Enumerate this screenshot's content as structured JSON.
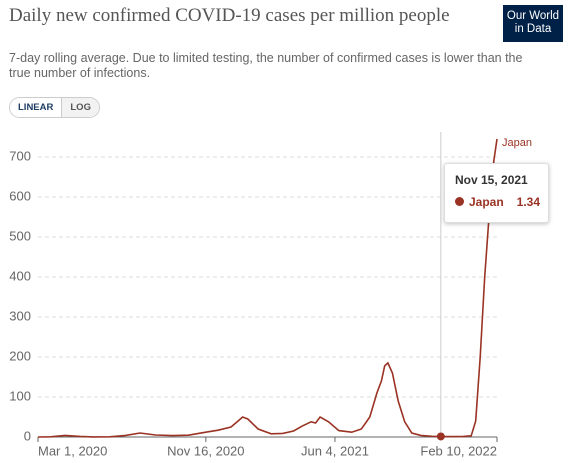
{
  "chart_data": {
    "type": "line",
    "title": "Daily new confirmed COVID-19 cases per million people",
    "subtitle": "7-day rolling average. Due to limited testing, the number of confirmed cases is lower than the true number of infections.",
    "logo": [
      "Our World",
      "in Data"
    ],
    "scale_buttons": [
      "LINEAR",
      "LOG"
    ],
    "log_scale": false,
    "grid": true,
    "x": [
      "2020-03-01",
      "2020-03-20",
      "2020-04-12",
      "2020-05-05",
      "2020-05-25",
      "2020-06-20",
      "2020-07-15",
      "2020-08-06",
      "2020-08-30",
      "2020-09-25",
      "2020-10-20",
      "2020-11-16",
      "2020-12-05",
      "2020-12-25",
      "2021-01-05",
      "2021-01-12",
      "2021-01-20",
      "2021-02-05",
      "2021-02-25",
      "2021-03-15",
      "2021-04-01",
      "2021-04-15",
      "2021-04-28",
      "2021-05-05",
      "2021-05-12",
      "2021-05-25",
      "2021-06-10",
      "2021-06-30",
      "2021-07-15",
      "2021-07-28",
      "2021-08-08",
      "2021-08-15",
      "2021-08-20",
      "2021-08-25",
      "2021-09-01",
      "2021-09-10",
      "2021-09-20",
      "2021-10-01",
      "2021-10-15",
      "2021-11-01",
      "2021-11-15",
      "2021-12-01",
      "2021-12-20",
      "2022-01-01",
      "2022-01-08",
      "2022-01-15",
      "2022-01-22",
      "2022-01-29",
      "2022-02-05",
      "2022-02-10"
    ],
    "series": [
      {
        "name": "Japan",
        "color": "#9a3324",
        "values": [
          0.1,
          0.5,
          4,
          1.5,
          0.3,
          0.5,
          4,
          10,
          5,
          3.5,
          4.5,
          12,
          17,
          25,
          40,
          50,
          45,
          20,
          8,
          9,
          15,
          28,
          38,
          35,
          50,
          38,
          16,
          12,
          20,
          50,
          110,
          140,
          178,
          185,
          160,
          90,
          38,
          10,
          4,
          1.8,
          1.34,
          1,
          1.5,
          3,
          40,
          200,
          400,
          560,
          690,
          745
        ]
      }
    ],
    "xlim": [
      "2020-03-01",
      "2022-02-10"
    ],
    "xticks": [
      {
        "value": "2020-03-01",
        "label": "Mar 1, 2020"
      },
      {
        "value": "2020-11-16",
        "label": "Nov 16, 2020"
      },
      {
        "value": "2021-06-04",
        "label": "Jun 4, 2021"
      },
      {
        "value": "2022-02-10",
        "label": "Feb 10, 2022"
      }
    ],
    "ylim": [
      0,
      750
    ],
    "yticks": [
      0,
      100,
      200,
      300,
      400,
      500,
      600,
      700
    ],
    "tooltip": {
      "x": "Nov 15, 2021",
      "value": 1.34
    }
  }
}
